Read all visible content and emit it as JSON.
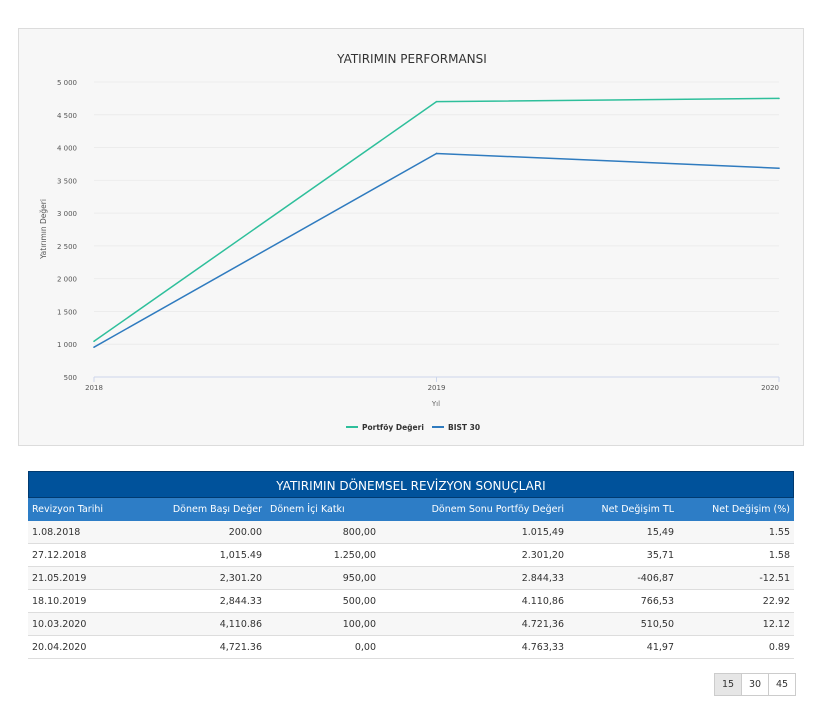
{
  "chart_data": {
    "type": "line",
    "title": "YATIRIMIN PERFORMANSI",
    "xlabel": "Yıl",
    "ylabel": "Yatırımın Değeri",
    "categories": [
      "2018",
      "2019",
      "2020"
    ],
    "ylim": [
      500,
      5000
    ],
    "yticks": [
      "500",
      "1 000",
      "1 500",
      "2 000",
      "2 500",
      "3 000",
      "3 500",
      "4 000",
      "4 500",
      "5 000"
    ],
    "grid": true,
    "legend_position": "bottom",
    "series": [
      {
        "name": "Portföy Değeri",
        "color": "#2ebf9b",
        "values": [
          1045,
          4700,
          4750
        ]
      },
      {
        "name": "BIST 30",
        "color": "#2f7bbf",
        "values": [
          955,
          3910,
          3685
        ]
      }
    ]
  },
  "table": {
    "title": "YATIRIMIN DÖNEMSEL REVİZYON SONUÇLARI",
    "headers": [
      "Revizyon Tarihi",
      "Dönem Başı Değer",
      "Dönem İçi Katkı",
      "Dönem Sonu Portföy Değeri",
      "Net Değişim TL",
      "Net Değişim (%)"
    ],
    "rows": [
      [
        "1.08.2018",
        "200.00",
        "800,00",
        "1.015,49",
        "15,49",
        "1.55"
      ],
      [
        "27.12.2018",
        "1,015.49",
        "1.250,00",
        "2.301,20",
        "35,71",
        "1.58"
      ],
      [
        "21.05.2019",
        "2,301.20",
        "950,00",
        "2.844,33",
        "-406,87",
        "-12.51"
      ],
      [
        "18.10.2019",
        "2,844.33",
        "500,00",
        "4.110,86",
        "766,53",
        "22.92"
      ],
      [
        "10.03.2020",
        "4,110.86",
        "100,00",
        "4.721,36",
        "510,50",
        "12.12"
      ],
      [
        "20.04.2020",
        "4,721.36",
        "0,00",
        "4.763,33",
        "41,97",
        "0.89"
      ]
    ]
  },
  "pagination": {
    "options": [
      "15",
      "30",
      "45"
    ],
    "selected": "15"
  }
}
